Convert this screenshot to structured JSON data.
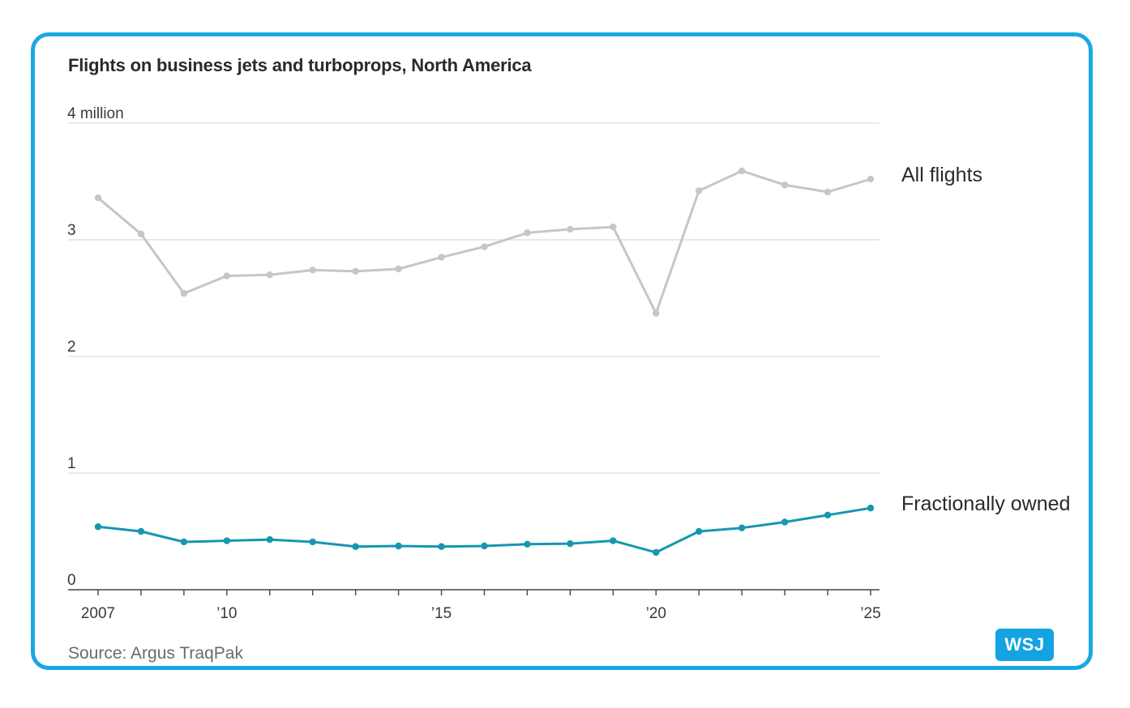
{
  "title": "Flights on business jets and turboprops, North America",
  "source": "Source: Argus TraqPak",
  "badge": "WSJ",
  "colors": {
    "frame": "#1aa8e5",
    "all_flights": "#c6c6c6",
    "fractional": "#1597b0",
    "grid": "#dcdcdc",
    "badge": "#13a3e0"
  },
  "chart_data": {
    "type": "line",
    "title": "Flights on business jets and turboprops, North America",
    "xlabel": "",
    "ylabel": "",
    "x": [
      2007,
      2008,
      2009,
      2010,
      2011,
      2012,
      2013,
      2014,
      2015,
      2016,
      2017,
      2018,
      2019,
      2020,
      2021,
      2022,
      2023,
      2024,
      2025
    ],
    "xlim": [
      2007,
      2025
    ],
    "ylim": [
      0,
      4
    ],
    "y_ticks": [
      {
        "value": 4,
        "label": "4 million"
      },
      {
        "value": 3,
        "label": "3"
      },
      {
        "value": 2,
        "label": "2"
      },
      {
        "value": 1,
        "label": "1"
      },
      {
        "value": 0,
        "label": "0"
      }
    ],
    "x_ticks": [
      {
        "value": 2007,
        "label": "2007"
      },
      {
        "value": 2010,
        "label": "’10"
      },
      {
        "value": 2015,
        "label": "’15"
      },
      {
        "value": 2020,
        "label": "’20"
      },
      {
        "value": 2025,
        "label": "’25"
      }
    ],
    "grid": true,
    "series": [
      {
        "name": "All flights",
        "key": "all_flights",
        "values": [
          3.36,
          3.05,
          2.54,
          2.69,
          2.7,
          2.74,
          2.73,
          2.75,
          2.85,
          2.94,
          3.06,
          3.09,
          3.11,
          2.37,
          3.42,
          3.59,
          3.47,
          3.41,
          3.52
        ]
      },
      {
        "name": "Fractionally owned",
        "key": "fractional",
        "values": [
          0.54,
          0.5,
          0.41,
          0.42,
          0.43,
          0.41,
          0.37,
          0.375,
          0.37,
          0.375,
          0.39,
          0.395,
          0.42,
          0.32,
          0.5,
          0.53,
          0.58,
          0.64,
          0.7
        ]
      }
    ]
  }
}
